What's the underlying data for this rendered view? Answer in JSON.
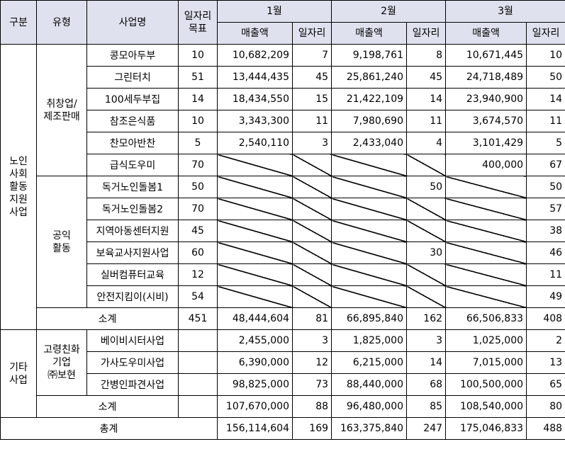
{
  "headers": {
    "category": "구분",
    "type": "유형",
    "project": "사업명",
    "target": "일자리\n목표",
    "months": [
      "1월",
      "2월",
      "3월"
    ],
    "sales": "매출액",
    "jobs": "일자리"
  },
  "groups": {
    "senior": "노인\n사회\n활동\n지원\n사업",
    "other": "기타\n사업"
  },
  "types": {
    "employment": "취창업/\n제조판매",
    "public": "공익\n활동",
    "company": "고령친화\n기업\n㈜보현"
  },
  "rows": [
    {
      "name": "콩모아두부",
      "target": "10",
      "m1s": "10,682,209",
      "m1j": "7",
      "m2s": "9,198,761",
      "m2j": "8",
      "m3s": "10,671,445",
      "m3j": "10"
    },
    {
      "name": "그린터치",
      "target": "51",
      "m1s": "13,444,435",
      "m1j": "45",
      "m2s": "25,861,240",
      "m2j": "45",
      "m3s": "24,718,489",
      "m3j": "50"
    },
    {
      "name": "100세두부집",
      "target": "14",
      "m1s": "18,434,550",
      "m1j": "15",
      "m2s": "21,422,109",
      "m2j": "14",
      "m3s": "23,940,900",
      "m3j": "14"
    },
    {
      "name": "참조은식품",
      "target": "10",
      "m1s": "3,343,300",
      "m1j": "11",
      "m2s": "7,980,690",
      "m2j": "11",
      "m3s": "3,674,570",
      "m3j": "11"
    },
    {
      "name": "찬모아반찬",
      "target": "5",
      "m1s": "2,540,110",
      "m1j": "3",
      "m2s": "2,433,040",
      "m2j": "4",
      "m3s": "3,101,429",
      "m3j": "5"
    },
    {
      "name": "급식도우미",
      "target": "70",
      "m1s": "",
      "m1j": "",
      "m2s": "",
      "m2j": "",
      "m3s": "400,000",
      "m3j": "67"
    },
    {
      "name": "독거노인돌봄1",
      "target": "50",
      "m1s": "",
      "m1j": "",
      "m2s": "",
      "m2j": "50",
      "m3s": "",
      "m3j": "50"
    },
    {
      "name": "독거노인돌봄2",
      "target": "70",
      "m1s": "",
      "m1j": "",
      "m2s": "",
      "m2j": "",
      "m3s": "",
      "m3j": "57"
    },
    {
      "name": "지역아동센터지원",
      "target": "45",
      "m1s": "",
      "m1j": "",
      "m2s": "",
      "m2j": "",
      "m3s": "",
      "m3j": "38"
    },
    {
      "name": "보육교사지원사업",
      "target": "60",
      "m1s": "",
      "m1j": "",
      "m2s": "",
      "m2j": "30",
      "m3s": "",
      "m3j": "46"
    },
    {
      "name": "실버컴퓨터교육",
      "target": "12",
      "m1s": "",
      "m1j": "",
      "m2s": "",
      "m2j": "",
      "m3s": "",
      "m3j": "11"
    },
    {
      "name": "안전지킴이(시비)",
      "target": "54",
      "m1s": "",
      "m1j": "",
      "m2s": "",
      "m2j": "",
      "m3s": "",
      "m3j": "49"
    },
    {
      "name": "소계",
      "target": "451",
      "m1s": "48,444,604",
      "m1j": "81",
      "m2s": "66,895,840",
      "m2j": "162",
      "m3s": "66,506,833",
      "m3j": "408"
    },
    {
      "name": "베이비시터사업",
      "target": "",
      "m1s": "2,455,000",
      "m1j": "3",
      "m2s": "1,825,000",
      "m2j": "3",
      "m3s": "1,025,000",
      "m3j": "2"
    },
    {
      "name": "가사도우미사업",
      "target": "",
      "m1s": "6,390,000",
      "m1j": "12",
      "m2s": "6,215,000",
      "m2j": "14",
      "m3s": "7,015,000",
      "m3j": "13"
    },
    {
      "name": "간병인파견사업",
      "target": "",
      "m1s": "98,825,000",
      "m1j": "73",
      "m2s": "88,440,000",
      "m2j": "68",
      "m3s": "100,500,000",
      "m3j": "65"
    },
    {
      "name": "소계",
      "target": "",
      "m1s": "107,670,000",
      "m1j": "88",
      "m2s": "96,480,000",
      "m2j": "85",
      "m3s": "108,540,000",
      "m3j": "80"
    },
    {
      "name": "총계",
      "target": "",
      "m1s": "156,114,604",
      "m1j": "169",
      "m2s": "163,375,840",
      "m2j": "247",
      "m3s": "175,046,833",
      "m3j": "488"
    }
  ]
}
